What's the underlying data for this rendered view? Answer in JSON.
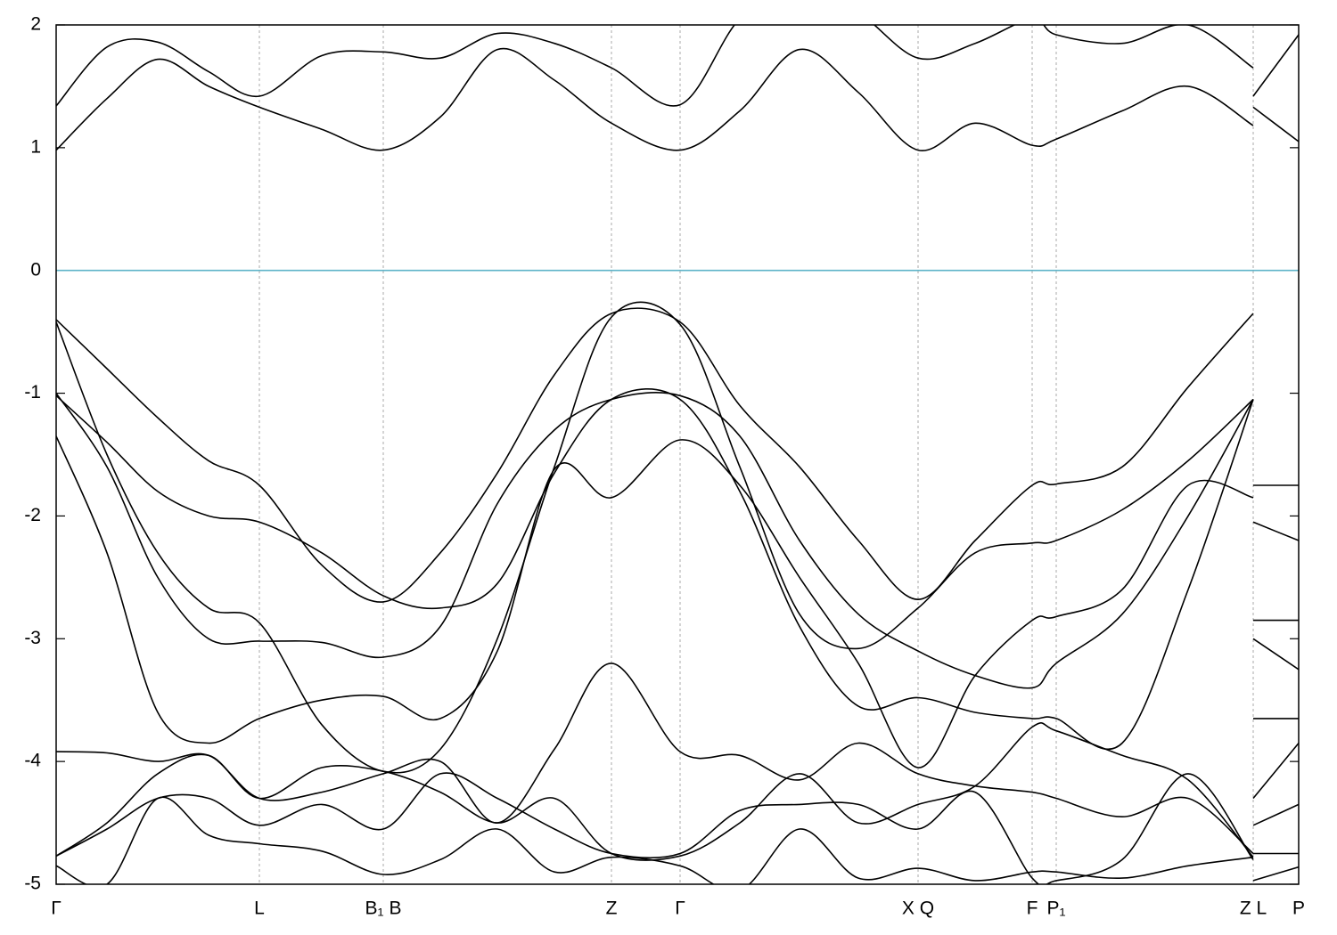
{
  "chart_data": {
    "type": "line",
    "x": [
      0,
      57,
      114,
      171,
      228,
      298,
      367,
      431,
      495,
      559,
      623,
      700,
      767,
      834,
      900,
      967,
      1031,
      1095,
      1122,
      1196,
      1270,
      1343,
      1343,
      1343,
      1394
    ],
    "xlim": [
      0,
      1394
    ],
    "xticks": [
      {
        "value": 0,
        "label": "Γ"
      },
      {
        "value": 228,
        "label": "L"
      },
      {
        "value": 367,
        "label": "B₁ B"
      },
      {
        "value": 623,
        "label": "Z"
      },
      {
        "value": 700,
        "label": "Γ"
      },
      {
        "value": 967,
        "label": "X Q"
      },
      {
        "value": 1095,
        "label": "F"
      },
      {
        "value": 1122,
        "label": "P₁"
      },
      {
        "value": 1343,
        "label": "Z L"
      },
      {
        "value": 1394,
        "label": "P"
      }
    ],
    "ylim": [
      -5,
      2
    ],
    "yticks": [
      -5,
      -4,
      -3,
      -2,
      -1,
      0,
      1,
      2
    ],
    "xgrid": true,
    "hlines": [
      {
        "value": 0,
        "color": "#5fb4c8"
      }
    ],
    "series": [
      {
        "color": "#000000",
        "values": [
          0.98,
          1.4,
          1.72,
          1.5,
          1.33,
          1.15,
          0.98,
          1.25,
          1.8,
          1.55,
          1.2,
          0.98,
          1.3,
          1.8,
          1.45,
          0.98,
          1.2,
          1.02,
          1.07,
          1.3,
          1.5,
          1.18,
          null,
          1.33,
          1.05
        ]
      },
      {
        "color": "#000000",
        "values": [
          1.34,
          1.82,
          1.86,
          1.62,
          1.42,
          1.75,
          1.78,
          1.73,
          1.93,
          1.85,
          1.65,
          1.35,
          2.05,
          2.3,
          2.1,
          1.73,
          1.85,
          2.05,
          1.92,
          1.85,
          2.0,
          1.65,
          null,
          1.42,
          1.92
        ]
      },
      {
        "color": "#000000",
        "values": [
          -0.4,
          -0.8,
          -1.2,
          -1.55,
          -1.75,
          -2.4,
          -2.7,
          -2.3,
          -1.65,
          -0.85,
          -0.35,
          -0.42,
          -1.1,
          -1.6,
          -2.2,
          -2.68,
          -2.2,
          -1.75,
          -1.74,
          -1.6,
          -0.95,
          -0.35,
          null,
          -1.75,
          -1.75
        ]
      },
      {
        "color": "#000000",
        "values": [
          -0.42,
          -1.5,
          -2.3,
          -2.75,
          -2.87,
          -3.7,
          -4.08,
          -3.9,
          -3.0,
          -1.6,
          -0.38,
          -0.44,
          -1.6,
          -2.8,
          -3.08,
          -2.75,
          -2.3,
          -2.22,
          -2.2,
          -1.95,
          -1.55,
          -1.05,
          null,
          -2.05,
          -2.2
        ]
      },
      {
        "color": "#000000",
        "values": [
          -1.0,
          -1.6,
          -2.5,
          -3.0,
          -3.02,
          -3.03,
          -3.15,
          -2.9,
          -1.9,
          -1.3,
          -1.05,
          -1.02,
          -1.35,
          -2.2,
          -2.8,
          -3.1,
          -3.3,
          -3.4,
          -3.2,
          -2.8,
          -2.0,
          -1.05,
          null,
          -2.85,
          -2.85
        ]
      },
      {
        "color": "#000000",
        "values": [
          -1.02,
          -1.4,
          -1.8,
          -2.0,
          -2.05,
          -2.3,
          -2.65,
          -2.75,
          -2.55,
          -1.65,
          -1.05,
          -1.05,
          -1.8,
          -2.9,
          -3.55,
          -3.48,
          -3.6,
          -3.65,
          -3.65,
          -3.85,
          -2.6,
          -1.05,
          null,
          -3.0,
          -3.25
        ]
      },
      {
        "color": "#000000",
        "values": [
          -1.35,
          -2.3,
          -3.6,
          -3.85,
          -3.65,
          -3.5,
          -3.47,
          -3.65,
          -3.1,
          -1.62,
          -1.85,
          -1.38,
          -1.75,
          -2.5,
          -3.2,
          -4.05,
          -3.3,
          -2.85,
          -2.82,
          -2.6,
          -1.75,
          -1.85,
          null,
          -3.65,
          -3.65
        ]
      },
      {
        "color": "#000000",
        "values": [
          -3.92,
          -3.93,
          -4.0,
          -3.95,
          -4.3,
          -4.25,
          -4.1,
          -4.0,
          -4.5,
          -3.9,
          -3.2,
          -3.92,
          -3.95,
          -4.15,
          -3.85,
          -4.1,
          -4.2,
          -4.25,
          -4.3,
          -4.45,
          -4.3,
          -4.75,
          null,
          -4.3,
          -3.85
        ]
      },
      {
        "color": "#000000",
        "values": [
          -4.77,
          -4.5,
          -4.1,
          -3.95,
          -4.3,
          -4.05,
          -4.08,
          -4.25,
          -4.5,
          -4.3,
          -4.75,
          -4.77,
          -4.5,
          -4.1,
          -4.5,
          -4.35,
          -4.2,
          -3.72,
          -3.75,
          -3.95,
          -4.15,
          -4.78,
          null,
          -4.52,
          -4.35
        ]
      },
      {
        "color": "#000000",
        "values": [
          -4.77,
          -4.55,
          -4.3,
          -4.3,
          -4.52,
          -4.35,
          -4.55,
          -4.1,
          -4.3,
          -4.55,
          -4.75,
          -4.75,
          -4.4,
          -4.35,
          -4.35,
          -4.55,
          -4.25,
          -4.95,
          -4.97,
          -4.8,
          -4.1,
          -4.8,
          null,
          -4.75,
          -4.75
        ]
      },
      {
        "color": "#000000",
        "values": [
          -4.85,
          -5.0,
          -4.3,
          -4.6,
          -4.67,
          -4.73,
          -4.92,
          -4.8,
          -4.55,
          -4.9,
          -4.78,
          -4.85,
          -5.05,
          -4.55,
          -4.95,
          -4.87,
          -4.97,
          -4.9,
          -4.9,
          -4.95,
          -4.85,
          -4.78,
          null,
          -4.97,
          -4.86
        ]
      }
    ]
  }
}
